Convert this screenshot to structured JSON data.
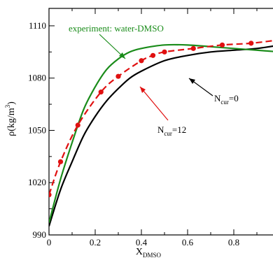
{
  "chart_data": {
    "type": "line",
    "xlabel": "X",
    "xlabel_sub": "DMSO",
    "ylabel": "ρ(kg/m",
    "ylabel_sup": "3",
    "ylabel_tail": ")",
    "xlim": [
      0,
      1.0
    ],
    "ylim": [
      990,
      1120
    ],
    "x_ticks": [
      0,
      0.2,
      0.4,
      0.6,
      0.8
    ],
    "x_tick_labels": [
      "0",
      "0.2",
      "0.4",
      "0.6",
      "0.8"
    ],
    "y_ticks": [
      990,
      1020,
      1050,
      1080,
      1110
    ],
    "y_tick_labels": [
      "990",
      "1020",
      "1050",
      "1080",
      "1110"
    ],
    "grid": false,
    "series": [
      {
        "name": "experiment: water-DMSO",
        "color": "#1a8c1a",
        "style": "solid",
        "x": [
          0,
          0.05,
          0.1,
          0.15,
          0.2,
          0.25,
          0.3,
          0.35,
          0.4,
          0.5,
          0.6,
          0.7,
          0.8,
          0.9,
          1.0
        ],
        "y": [
          997,
          1022,
          1043,
          1062,
          1075,
          1085,
          1091,
          1095,
          1097,
          1099,
          1099,
          1098,
          1097,
          1096,
          1095
        ]
      },
      {
        "name": "N_cur=12",
        "color": "#e01010",
        "style": "dashed",
        "markers": true,
        "x": [
          0,
          0.05,
          0.125,
          0.225,
          0.3,
          0.4,
          0.45,
          0.5,
          0.625,
          0.75,
          0.875,
          1.0
        ],
        "y": [
          1013,
          1032,
          1053,
          1072,
          1081,
          1090,
          1093,
          1095,
          1097,
          1099,
          1100,
          1102
        ]
      },
      {
        "name": "N_cur=0",
        "color": "#000000",
        "style": "solid",
        "x": [
          0,
          0.05,
          0.1,
          0.15,
          0.2,
          0.25,
          0.3,
          0.35,
          0.4,
          0.5,
          0.6,
          0.7,
          0.8,
          0.9,
          1.0
        ],
        "y": [
          995,
          1016,
          1032,
          1047,
          1058,
          1067,
          1074,
          1080,
          1084,
          1090,
          1093,
          1095,
          1096,
          1097,
          1099
        ]
      }
    ],
    "annotations": [
      {
        "text": "experiment: water-DMSO",
        "series": 0
      },
      {
        "text": "N",
        "sub": "cur",
        "tail": "=12",
        "series": 1
      },
      {
        "text": "N",
        "sub": "cur",
        "tail": "=0",
        "series": 2
      }
    ]
  }
}
